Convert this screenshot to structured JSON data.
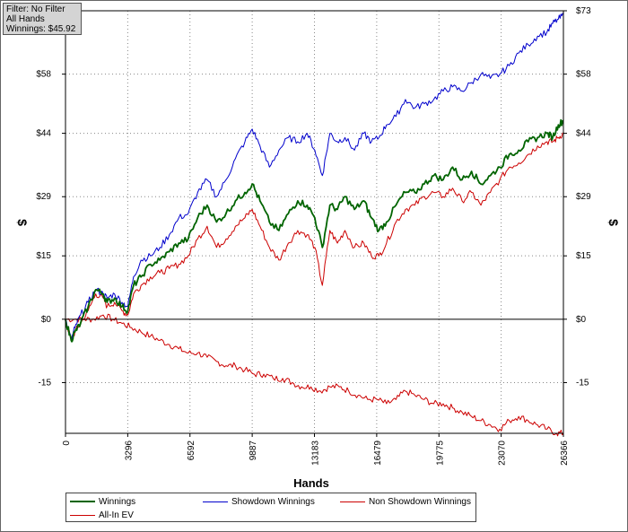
{
  "info_box": {
    "filter": "Filter: No Filter",
    "hands": "All Hands",
    "winnings": "Winnings: $45.92"
  },
  "legend": {
    "items": [
      {
        "label": "Winnings",
        "color": "#006400"
      },
      {
        "label": "Showdown Winnings",
        "color": "#0000cc"
      },
      {
        "label": "Non Showdown Winnings",
        "color": "#cc0000"
      },
      {
        "label": "All-In EV",
        "color": "#cc0000"
      }
    ]
  },
  "chart_data": {
    "type": "line",
    "title": "",
    "xlabel": "Hands",
    "ylabel": "$",
    "xlim": [
      0,
      26366
    ],
    "ylim": [
      -27,
      73
    ],
    "x_ticks": [
      0,
      3296,
      6592,
      9887,
      13183,
      16479,
      19775,
      23070,
      26366
    ],
    "y_ticks": [
      -15,
      0,
      15,
      29,
      44,
      58,
      73
    ],
    "y_tick_labels_left": [
      "-15",
      "$0",
      "$15",
      "$29",
      "$44",
      "$58",
      ""
    ],
    "y_tick_labels_right": [
      "-15",
      "$0",
      "$15",
      "$29",
      "$44",
      "$58",
      "$73"
    ],
    "grid": true,
    "legend_position": "bottom",
    "series": [
      {
        "name": "Winnings",
        "color": "#006400",
        "x": [
          0,
          300,
          500,
          800,
          1200,
          1600,
          2000,
          2200,
          2600,
          3000,
          3300,
          3600,
          4000,
          4500,
          5000,
          5500,
          6000,
          6500,
          7000,
          7500,
          8000,
          8500,
          9000,
          9500,
          9887,
          10300,
          10800,
          11300,
          11800,
          12300,
          12800,
          13200,
          13600,
          14000,
          14400,
          14800,
          15300,
          15800,
          16200,
          16600,
          17000,
          17500,
          18000,
          18500,
          19000,
          19500,
          20000,
          20500,
          21000,
          21500,
          22000,
          22500,
          23000,
          23500,
          24000,
          24500,
          25000,
          25500,
          25800,
          26100,
          26366
        ],
        "y": [
          0,
          -5,
          -3,
          -1,
          3,
          7,
          6,
          4,
          5,
          3,
          2,
          8,
          10,
          13,
          14,
          16,
          18,
          19,
          24,
          27,
          23,
          25,
          28,
          30,
          32,
          28,
          23,
          21,
          25,
          28,
          27,
          24,
          17,
          27,
          26,
          29,
          26,
          28,
          24,
          21,
          23,
          27,
          30,
          30,
          32,
          34,
          33,
          36,
          33,
          35,
          32,
          34,
          36,
          39,
          40,
          42,
          43,
          44,
          43,
          46,
          47
        ]
      },
      {
        "name": "Showdown Winnings",
        "color": "#0000cc",
        "x": [
          0,
          300,
          500,
          800,
          1200,
          1600,
          2000,
          2200,
          2600,
          3000,
          3300,
          3600,
          4000,
          4500,
          5000,
          5500,
          6000,
          6500,
          7000,
          7500,
          8000,
          8500,
          9000,
          9500,
          9887,
          10300,
          10800,
          11300,
          11800,
          12300,
          12800,
          13200,
          13600,
          14000,
          14400,
          14800,
          15300,
          15800,
          16200,
          16600,
          17000,
          17500,
          18000,
          18500,
          19000,
          19500,
          20000,
          20500,
          21000,
          21500,
          22000,
          22500,
          23000,
          23500,
          24000,
          24500,
          25000,
          25500,
          25800,
          26100,
          26366
        ],
        "y": [
          0,
          -5,
          -2,
          1,
          4,
          7,
          6,
          5,
          6,
          4,
          3,
          10,
          14,
          15,
          17,
          20,
          24,
          25,
          30,
          33,
          29,
          33,
          38,
          42,
          45,
          41,
          36,
          40,
          43,
          42,
          44,
          40,
          34,
          44,
          42,
          43,
          40,
          44,
          42,
          43,
          46,
          48,
          52,
          50,
          51,
          52,
          54,
          55,
          54,
          56,
          58,
          57,
          58,
          60,
          63,
          65,
          67,
          68,
          70,
          71,
          72
        ]
      },
      {
        "name": "Non Showdown Winnings",
        "color": "#cc0000",
        "x": [
          0,
          300,
          500,
          800,
          1200,
          1600,
          2000,
          2200,
          2600,
          3000,
          3300,
          3600,
          4000,
          4500,
          5000,
          5500,
          6000,
          6500,
          7000,
          7500,
          8000,
          8500,
          9000,
          9500,
          9887,
          10300,
          10800,
          11300,
          11800,
          12300,
          12800,
          13200,
          13600,
          14000,
          14400,
          14800,
          15300,
          15800,
          16200,
          16600,
          17000,
          17500,
          18000,
          18500,
          19000,
          19500,
          20000,
          20500,
          21000,
          21500,
          22000,
          22500,
          23000,
          23500,
          24000,
          24500,
          25000,
          25500,
          25800,
          26100,
          26366
        ],
        "y": [
          0,
          -5,
          -3,
          -1,
          2,
          6,
          5,
          3,
          4,
          2,
          1,
          6,
          8,
          10,
          11,
          12,
          13,
          15,
          19,
          22,
          17,
          19,
          22,
          24,
          26,
          22,
          17,
          14,
          18,
          21,
          20,
          17,
          8,
          21,
          18,
          21,
          17,
          18,
          15,
          15,
          18,
          23,
          26,
          27,
          29,
          30,
          29,
          31,
          28,
          30,
          27,
          30,
          33,
          36,
          37,
          39,
          41,
          42,
          42,
          43,
          44
        ]
      },
      {
        "name": "All-In EV",
        "color": "#cc0000",
        "x": [
          0,
          500,
          1000,
          1500,
          2000,
          2500,
          3000,
          3500,
          4000,
          4500,
          5000,
          5500,
          6000,
          6500,
          7000,
          7500,
          8000,
          8500,
          9000,
          9500,
          10000,
          10500,
          11000,
          11500,
          12000,
          12500,
          13000,
          13500,
          14000,
          14500,
          15000,
          15500,
          16000,
          16500,
          17000,
          17500,
          18000,
          18500,
          19000,
          19500,
          20000,
          20500,
          21000,
          21500,
          22000,
          22500,
          23000,
          23500,
          24000,
          24500,
          25000,
          25500,
          26000,
          26366
        ],
        "y": [
          0,
          0,
          0,
          0,
          1,
          0,
          -1,
          -2,
          -3,
          -4,
          -5,
          -6,
          -7,
          -8,
          -8,
          -9,
          -10,
          -11,
          -11,
          -12,
          -13,
          -13,
          -14,
          -14,
          -15,
          -16,
          -16,
          -17,
          -16,
          -16,
          -17,
          -18,
          -19,
          -19,
          -20,
          -19,
          -17,
          -18,
          -19,
          -20,
          -20,
          -21,
          -22,
          -23,
          -24,
          -25,
          -26,
          -24,
          -23,
          -24,
          -25,
          -26,
          -27,
          -27
        ]
      }
    ]
  }
}
